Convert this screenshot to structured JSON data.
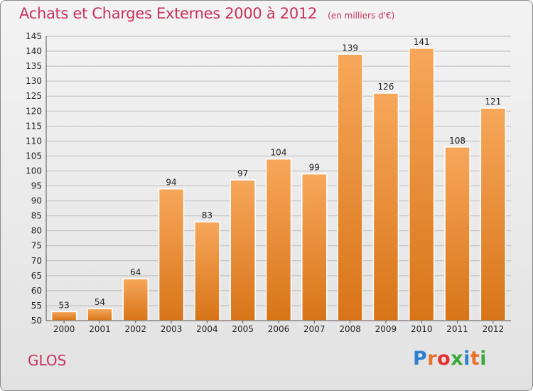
{
  "header": {
    "title": "Achats et Charges Externes 2000 à 2012",
    "unit": "(en milliers d'€)"
  },
  "footer": {
    "commune": "GLOS",
    "logo": "Proxiti",
    "logo_colors": [
      "#2e7fd0",
      "#e8702a",
      "#e53030",
      "#3ca83c",
      "#2e7fd0",
      "#e8702a",
      "#3ca83c"
    ]
  },
  "colors": {
    "bar_top": "#f7a75a",
    "bar_bottom": "#d87418",
    "title": "#c8325a"
  },
  "chart_data": {
    "type": "bar",
    "title": "Achats et Charges Externes 2000 à 2012",
    "subtitle": "(en milliers d'€)",
    "categories": [
      "2000",
      "2001",
      "2002",
      "2003",
      "2004",
      "2005",
      "2006",
      "2007",
      "2008",
      "2009",
      "2010",
      "2011",
      "2012"
    ],
    "values": [
      53,
      54,
      64,
      94,
      83,
      97,
      104,
      99,
      139,
      126,
      141,
      108,
      121
    ],
    "ylim": [
      50,
      145
    ],
    "yticks": [
      50,
      55,
      60,
      65,
      70,
      75,
      80,
      85,
      90,
      95,
      100,
      105,
      110,
      115,
      120,
      125,
      130,
      135,
      140,
      145
    ],
    "grid": true,
    "legend": "none"
  }
}
